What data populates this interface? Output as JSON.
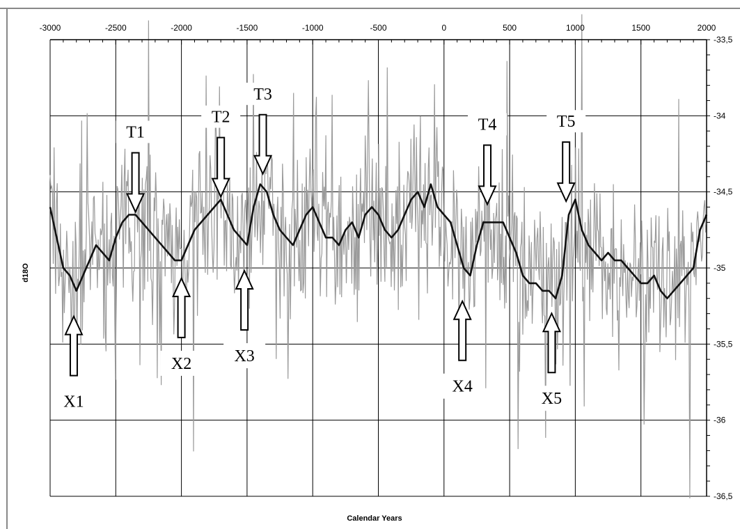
{
  "chart_data": {
    "type": "line",
    "title": "",
    "xlabel": "Calendar Years",
    "ylabel": "d18O",
    "xlim": [
      -3000,
      2000
    ],
    "ylim": [
      -36.5,
      -33.5
    ],
    "y_reversed": true,
    "x_axis_position": "top",
    "y_axis_position": "right",
    "grid": true,
    "legend": "none",
    "x_ticks": [
      -3000,
      -2500,
      -2000,
      -1500,
      -1000,
      -500,
      0,
      500,
      1000,
      1500,
      2000
    ],
    "x_tick_labels": [
      "-3000",
      "-2500",
      "-2000",
      "-1500",
      "-1000",
      "-500",
      "0",
      "500",
      "1000",
      "1500",
      "2000"
    ],
    "y_ticks": [
      -33.5,
      -34,
      -34.5,
      -35,
      -35.5,
      -36,
      -36.5
    ],
    "y_tick_labels": [
      "-33,5",
      "-34",
      "-34,5",
      "-35",
      "-35,5",
      "-36",
      "-36,5"
    ],
    "series": [
      {
        "color": "#111111",
        "style": "smoothed",
        "x": [
          -3000,
          -2950,
          -2900,
          -2850,
          -2800,
          -2750,
          -2700,
          -2650,
          -2600,
          -2550,
          -2500,
          -2450,
          -2400,
          -2350,
          -2300,
          -2250,
          -2200,
          -2150,
          -2100,
          -2050,
          -2000,
          -1950,
          -1900,
          -1850,
          -1800,
          -1750,
          -1700,
          -1650,
          -1600,
          -1550,
          -1500,
          -1450,
          -1400,
          -1350,
          -1300,
          -1250,
          -1200,
          -1150,
          -1100,
          -1050,
          -1000,
          -950,
          -900,
          -850,
          -800,
          -750,
          -700,
          -650,
          -600,
          -550,
          -500,
          -450,
          -400,
          -350,
          -300,
          -250,
          -200,
          -150,
          -100,
          -50,
          0,
          50,
          100,
          150,
          200,
          250,
          300,
          350,
          400,
          450,
          500,
          550,
          600,
          650,
          700,
          750,
          800,
          850,
          900,
          950,
          1000,
          1050,
          1100,
          1150,
          1200,
          1250,
          1300,
          1350,
          1400,
          1450,
          1500,
          1550,
          1600,
          1650,
          1700,
          1750,
          1800,
          1850,
          1900,
          1950,
          2000
        ],
        "y": [
          -34.6,
          -34.8,
          -35.0,
          -35.05,
          -35.15,
          -35.05,
          -34.95,
          -34.85,
          -34.9,
          -34.95,
          -34.8,
          -34.7,
          -34.65,
          -34.65,
          -34.7,
          -34.75,
          -34.8,
          -34.85,
          -34.9,
          -34.95,
          -34.95,
          -34.85,
          -34.75,
          -34.7,
          -34.65,
          -34.6,
          -34.55,
          -34.65,
          -34.75,
          -34.8,
          -34.85,
          -34.6,
          -34.45,
          -34.5,
          -34.65,
          -34.75,
          -34.8,
          -34.85,
          -34.75,
          -34.65,
          -34.6,
          -34.7,
          -34.8,
          -34.8,
          -34.85,
          -34.75,
          -34.7,
          -34.8,
          -34.65,
          -34.6,
          -34.65,
          -34.75,
          -34.8,
          -34.75,
          -34.65,
          -34.55,
          -34.5,
          -34.6,
          -34.45,
          -34.6,
          -34.65,
          -34.7,
          -34.85,
          -35.0,
          -35.05,
          -34.85,
          -34.7,
          -34.7,
          -34.7,
          -34.7,
          -34.8,
          -34.9,
          -35.05,
          -35.1,
          -35.1,
          -35.15,
          -35.15,
          -35.2,
          -35.05,
          -34.65,
          -34.55,
          -34.75,
          -34.85,
          -34.9,
          -34.95,
          -34.9,
          -34.95,
          -34.95,
          -35.0,
          -35.05,
          -35.1,
          -35.1,
          -35.05,
          -35.15,
          -35.2,
          -35.15,
          -35.1,
          -35.05,
          -35.0,
          -34.75,
          -34.65
        ]
      }
    ],
    "annotations": [
      {
        "label": "T1",
        "x": -2350,
        "y": -34.65,
        "dir": "down"
      },
      {
        "label": "T2",
        "x": -1700,
        "y": -34.55,
        "dir": "down"
      },
      {
        "label": "T3",
        "x": -1380,
        "y": -34.4,
        "dir": "down"
      },
      {
        "label": "T4",
        "x": 330,
        "y": -34.6,
        "dir": "down"
      },
      {
        "label": "T5",
        "x": 930,
        "y": -34.58,
        "dir": "down"
      },
      {
        "label": "X1",
        "x": -2820,
        "y": -35.3,
        "dir": "up"
      },
      {
        "label": "X2",
        "x": -2000,
        "y": -35.05,
        "dir": "up"
      },
      {
        "label": "X3",
        "x": -1520,
        "y": -35.0,
        "dir": "up"
      },
      {
        "label": "X4",
        "x": 140,
        "y": -35.2,
        "dir": "up"
      },
      {
        "label": "X5",
        "x": 820,
        "y": -35.28,
        "dir": "up"
      }
    ]
  }
}
